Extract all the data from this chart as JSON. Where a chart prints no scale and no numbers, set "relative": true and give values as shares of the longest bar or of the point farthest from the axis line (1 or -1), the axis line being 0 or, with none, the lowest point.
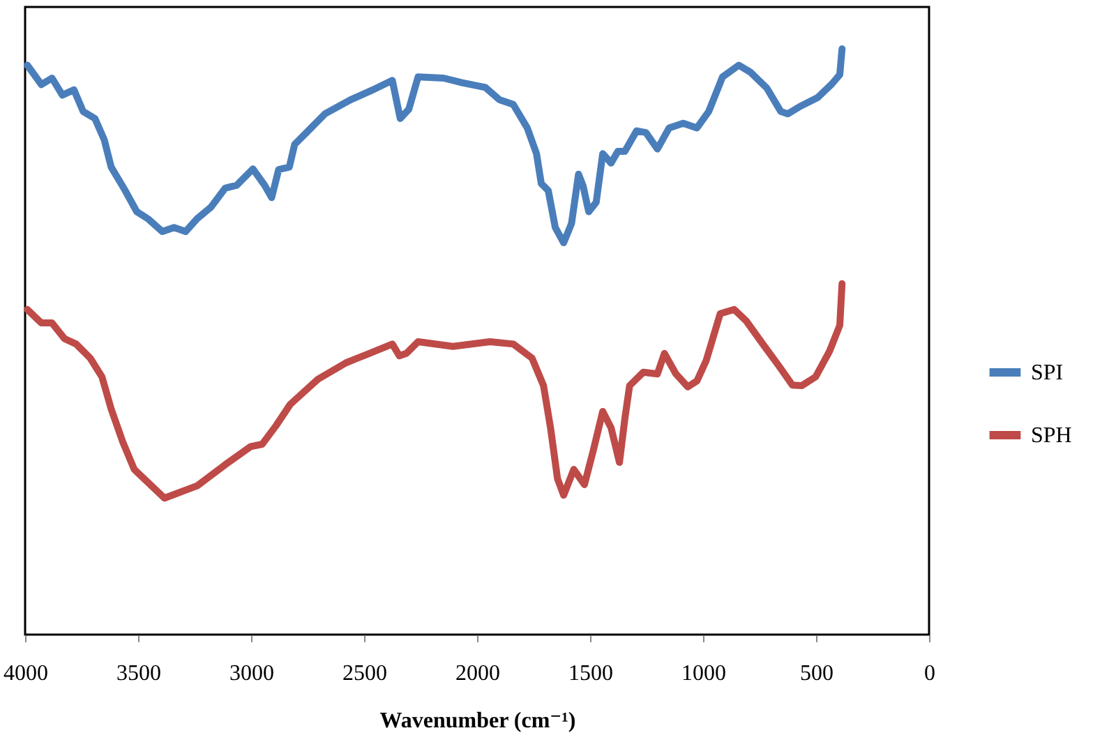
{
  "chart_data": {
    "type": "line",
    "relative": true,
    "xlabel": "Wavenumber (cm⁻¹)",
    "xlim": [
      4000,
      0
    ],
    "xticks": [
      4000,
      3500,
      3000,
      2500,
      2000,
      1500,
      1000,
      500,
      0
    ],
    "legend": "right",
    "grid": false,
    "marker": "none",
    "line_style": "solid",
    "series": [
      {
        "name": "SPI",
        "color": "#4a7ebb",
        "x": [
          3990,
          3928,
          3881,
          3835,
          3784,
          3743,
          3691,
          3650,
          3619,
          3557,
          3506,
          3457,
          3393,
          3341,
          3290,
          3239,
          3177,
          3115,
          3064,
          2992,
          2940,
          2909,
          2878,
          2831,
          2807,
          2755,
          2673,
          2560,
          2467,
          2375,
          2340,
          2302,
          2261,
          2148,
          2066,
          1963,
          1901,
          1840,
          1778,
          1737,
          1716,
          1685,
          1654,
          1617,
          1582,
          1551,
          1531,
          1506,
          1473,
          1444,
          1407,
          1377,
          1346,
          1294,
          1253,
          1202,
          1150,
          1088,
          1027,
          975,
          914,
          842,
          790,
          718,
          656,
          625,
          574,
          492,
          430,
          395,
          385
        ],
        "values": [
          0.972,
          0.939,
          0.95,
          0.921,
          0.93,
          0.893,
          0.881,
          0.845,
          0.798,
          0.758,
          0.722,
          0.71,
          0.688,
          0.695,
          0.688,
          0.71,
          0.73,
          0.762,
          0.767,
          0.795,
          0.767,
          0.746,
          0.794,
          0.798,
          0.837,
          0.857,
          0.889,
          0.913,
          0.929,
          0.946,
          0.881,
          0.897,
          0.952,
          0.95,
          0.942,
          0.934,
          0.913,
          0.905,
          0.865,
          0.821,
          0.77,
          0.758,
          0.695,
          0.669,
          0.702,
          0.786,
          0.766,
          0.722,
          0.738,
          0.821,
          0.805,
          0.825,
          0.825,
          0.86,
          0.857,
          0.829,
          0.865,
          0.873,
          0.865,
          0.893,
          0.952,
          0.972,
          0.96,
          0.933,
          0.893,
          0.889,
          0.901,
          0.917,
          0.94,
          0.956,
          1.0
        ]
      },
      {
        "name": "SPH",
        "color": "#be4b48",
        "x": [
          3990,
          3928,
          3881,
          3825,
          3774,
          3712,
          3660,
          3619,
          3568,
          3517,
          3383,
          3239,
          3115,
          3002,
          2951,
          2889,
          2827,
          2704,
          2580,
          2477,
          2375,
          2344,
          2313,
          2261,
          2107,
          1943,
          1840,
          1757,
          1706,
          1675,
          1644,
          1617,
          1572,
          1525,
          1486,
          1444,
          1407,
          1370,
          1346,
          1325,
          1264,
          1202,
          1171,
          1120,
          1068,
          1027,
          986,
          924,
          862,
          810,
          728,
          667,
          605,
          563,
          502,
          440,
          395,
          385
        ],
        "values": [
          0.555,
          0.532,
          0.532,
          0.505,
          0.496,
          0.472,
          0.44,
          0.385,
          0.329,
          0.282,
          0.233,
          0.254,
          0.29,
          0.321,
          0.325,
          0.357,
          0.393,
          0.436,
          0.464,
          0.48,
          0.496,
          0.476,
          0.48,
          0.5,
          0.492,
          0.5,
          0.496,
          0.472,
          0.425,
          0.353,
          0.266,
          0.238,
          0.282,
          0.256,
          0.314,
          0.381,
          0.353,
          0.294,
          0.369,
          0.425,
          0.448,
          0.445,
          0.48,
          0.445,
          0.423,
          0.433,
          0.468,
          0.548,
          0.555,
          0.536,
          0.492,
          0.46,
          0.426,
          0.425,
          0.44,
          0.484,
          0.528,
          0.599
        ]
      }
    ]
  }
}
